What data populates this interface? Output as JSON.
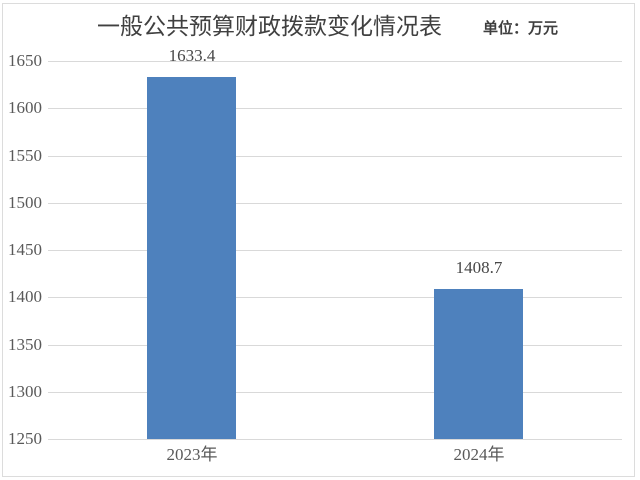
{
  "chart_data": {
    "type": "bar",
    "title": "一般公共预算财政拨款变化情况表",
    "unit": "单位：万元",
    "categories": [
      "2023年",
      "2024年"
    ],
    "values": [
      1633.4,
      1408.7
    ],
    "data_labels": [
      "1633.4",
      "1408.7"
    ],
    "xlabel": "",
    "ylabel": "",
    "ylim": [
      1250,
      1650
    ],
    "ytick_interval": 50,
    "yticks": [
      1250,
      1300,
      1350,
      1400,
      1450,
      1500,
      1550,
      1600,
      1650
    ],
    "grid": true,
    "legend": false,
    "colors": {
      "bar": "#4e81bd",
      "gridline": "#d9d9d9",
      "border": "#dcdcdc",
      "tick_text": "#595959",
      "title_text": "#404040",
      "background": "#ffffff"
    }
  }
}
